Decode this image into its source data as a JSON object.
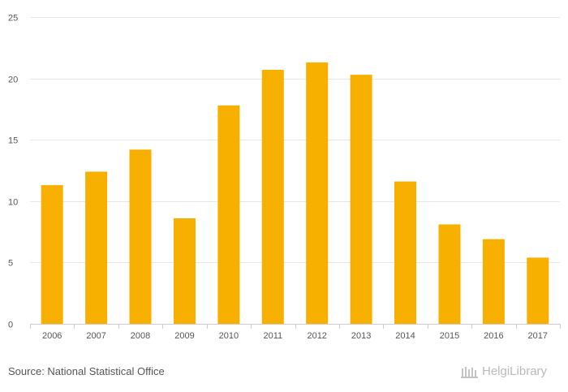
{
  "chart_data": {
    "type": "bar",
    "categories": [
      "2006",
      "2007",
      "2008",
      "2009",
      "2010",
      "2011",
      "2012",
      "2013",
      "2014",
      "2015",
      "2016",
      "2017"
    ],
    "values": [
      11.3,
      12.4,
      14.2,
      8.6,
      17.8,
      20.7,
      21.3,
      20.3,
      11.6,
      8.1,
      6.9,
      5.4
    ],
    "ylim": [
      0,
      25
    ],
    "yticks": [
      0,
      5,
      10,
      15,
      20,
      25
    ],
    "grid": true,
    "bar_color": "#f7b000",
    "title": "",
    "xlabel": "",
    "ylabel": ""
  },
  "footer": {
    "source": "Source: National Statistical Office",
    "brand": "HelgiLibrary"
  }
}
